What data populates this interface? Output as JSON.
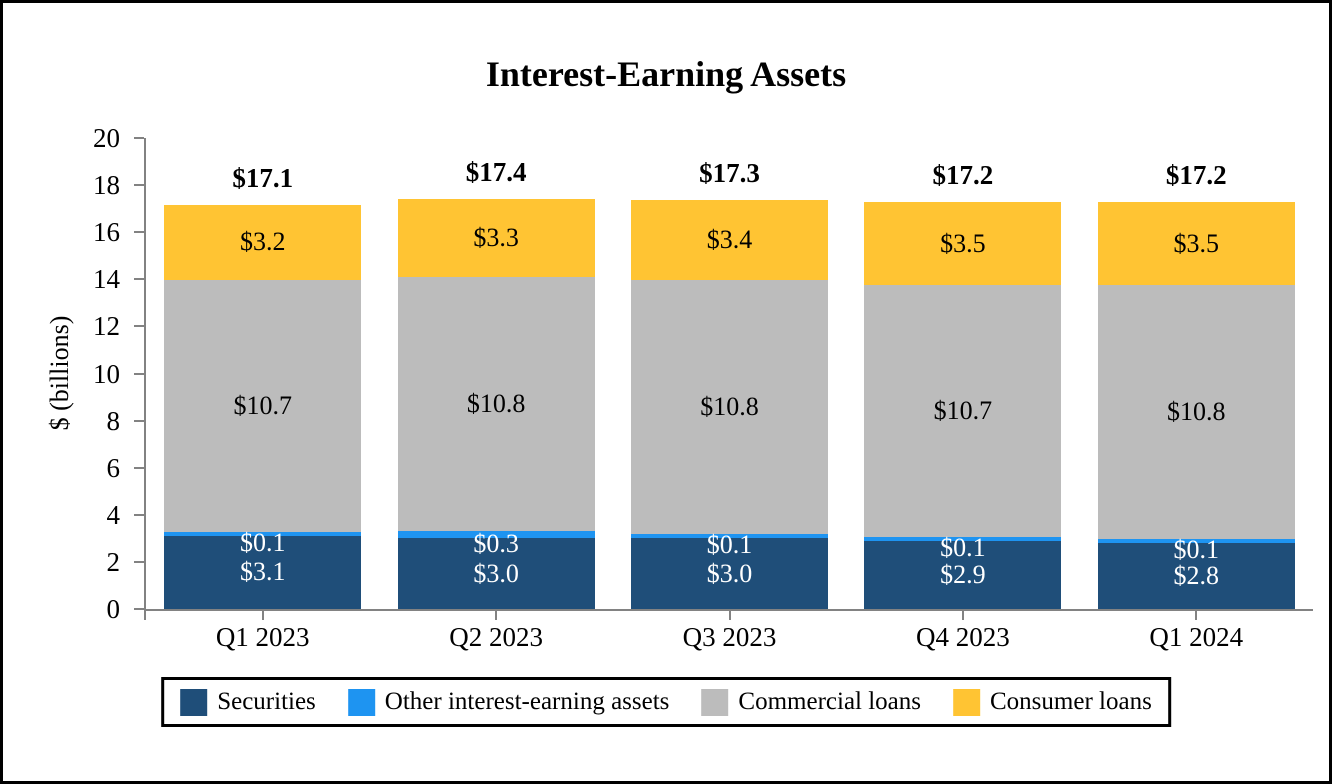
{
  "figure": {
    "title": "Interest-Earning Assets"
  },
  "chart_data": {
    "type": "bar",
    "stacked": true,
    "title": "Interest-Earning Assets",
    "ylabel": "$ (billions)",
    "ylim": [
      0,
      20
    ],
    "ytick_step": 2,
    "grid": false,
    "legend_position": "bottom",
    "categories": [
      "Q1 2023",
      "Q2 2023",
      "Q3 2023",
      "Q4 2023",
      "Q1 2024"
    ],
    "series": [
      {
        "name": "Securities",
        "color": "#1F4E79",
        "label_color": "#FFFFFF",
        "values": [
          3.1,
          3.0,
          3.0,
          2.9,
          2.8
        ],
        "data_labels": [
          "$3.1",
          "$3.0",
          "$3.0",
          "$2.9",
          "$2.8"
        ]
      },
      {
        "name": "Other interest-earning assets",
        "color": "#1E94F1",
        "label_color": "#FFFFFF",
        "values": [
          0.1,
          0.3,
          0.1,
          0.1,
          0.1
        ],
        "data_labels": [
          "$0.1",
          "$0.3",
          "$0.1",
          "$0.1",
          "$0.1"
        ]
      },
      {
        "name": "Commercial loans",
        "color": "#BCBCBC",
        "label_color": "#000000",
        "values": [
          10.7,
          10.8,
          10.8,
          10.7,
          10.8
        ],
        "data_labels": [
          "$10.7",
          "$10.8",
          "$10.8",
          "$10.7",
          "$10.8"
        ]
      },
      {
        "name": "Consumer loans",
        "color": "#FFC433",
        "label_color": "#000000",
        "values": [
          3.2,
          3.3,
          3.4,
          3.5,
          3.5
        ],
        "data_labels": [
          "$3.2",
          "$3.3",
          "$3.4",
          "$3.5",
          "$3.5"
        ]
      }
    ],
    "totals": [
      17.1,
      17.4,
      17.3,
      17.2,
      17.2
    ],
    "total_labels": [
      "$17.1",
      "$17.4",
      "$17.3",
      "$17.2",
      "$17.2"
    ]
  },
  "legend": {
    "items": [
      "Securities",
      "Other interest-earning assets",
      "Commercial loans",
      "Consumer loans"
    ]
  }
}
